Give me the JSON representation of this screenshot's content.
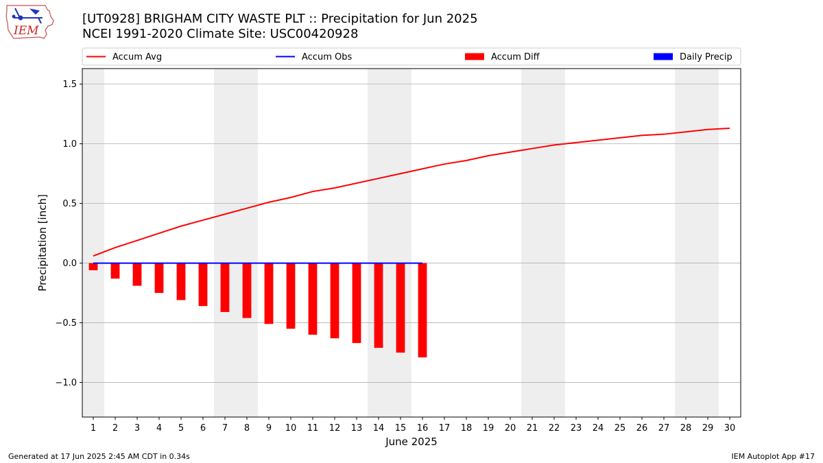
{
  "header": {
    "title_line1": "[UT0928] BRIGHAM CITY WASTE PLT :: Precipitation for Jun 2025",
    "title_line2": "NCEI 1991-2020 Climate Site: USC00420928"
  },
  "logo": {
    "text": "IEM",
    "icon": "iowa-state-map-logo-icon"
  },
  "footer": {
    "left": "Generated at 17 Jun 2025 2:45 AM CDT in 0.34s",
    "right": "IEM Autoplot App #17"
  },
  "colors": {
    "accum_avg": "#ff0000",
    "accum_obs": "#0000ff",
    "accum_diff": "#ff0000",
    "daily_precip": "#0000ff",
    "weekend_band": "#eeeeee",
    "grid": "#b0b0b0"
  },
  "chart_data": {
    "type": "bar",
    "xlabel": "June 2025",
    "ylabel": "Precipitation [inch]",
    "xlim": [
      0.5,
      30.5
    ],
    "ylim": [
      -1.29,
      1.63
    ],
    "x_ticks": [
      1,
      2,
      3,
      4,
      5,
      6,
      7,
      8,
      9,
      10,
      11,
      12,
      13,
      14,
      15,
      16,
      17,
      18,
      19,
      20,
      21,
      22,
      23,
      24,
      25,
      26,
      27,
      28,
      29,
      30
    ],
    "y_ticks": [
      -1.0,
      -0.5,
      0.0,
      0.5,
      1.0,
      1.5
    ],
    "y_tick_labels": [
      "−1.0",
      "−0.5",
      "0.0",
      "0.5",
      "1.0",
      "1.5"
    ],
    "grid": "horizontal",
    "legend_position": "top",
    "weekend_bands": [
      [
        0.5,
        1.5
      ],
      [
        6.5,
        8.5
      ],
      [
        13.5,
        15.5
      ],
      [
        20.5,
        22.5
      ],
      [
        27.5,
        29.5
      ]
    ],
    "series": [
      {
        "name": "Accum Avg",
        "kind": "line",
        "x": [
          1,
          2,
          3,
          4,
          5,
          6,
          7,
          8,
          9,
          10,
          11,
          12,
          13,
          14,
          15,
          16,
          17,
          18,
          19,
          20,
          21,
          22,
          23,
          24,
          25,
          26,
          27,
          28,
          29,
          30
        ],
        "values": [
          0.06,
          0.13,
          0.19,
          0.25,
          0.31,
          0.36,
          0.41,
          0.46,
          0.51,
          0.55,
          0.6,
          0.63,
          0.67,
          0.71,
          0.75,
          0.79,
          0.83,
          0.86,
          0.9,
          0.93,
          0.96,
          0.99,
          1.01,
          1.03,
          1.05,
          1.07,
          1.08,
          1.1,
          1.12,
          1.13
        ]
      },
      {
        "name": "Accum Obs",
        "kind": "line",
        "x": [
          1,
          2,
          3,
          4,
          5,
          6,
          7,
          8,
          9,
          10,
          11,
          12,
          13,
          14,
          15,
          16
        ],
        "values": [
          0,
          0,
          0,
          0,
          0,
          0,
          0,
          0,
          0,
          0,
          0,
          0,
          0,
          0,
          0,
          0
        ]
      },
      {
        "name": "Accum Diff",
        "kind": "bar",
        "x": [
          1,
          2,
          3,
          4,
          5,
          6,
          7,
          8,
          9,
          10,
          11,
          12,
          13,
          14,
          15,
          16
        ],
        "values": [
          -0.06,
          -0.13,
          -0.19,
          -0.25,
          -0.31,
          -0.36,
          -0.41,
          -0.46,
          -0.51,
          -0.55,
          -0.6,
          -0.63,
          -0.67,
          -0.71,
          -0.75,
          -0.79
        ]
      },
      {
        "name": "Daily Precip",
        "kind": "bar",
        "x": [
          1,
          2,
          3,
          4,
          5,
          6,
          7,
          8,
          9,
          10,
          11,
          12,
          13,
          14,
          15,
          16
        ],
        "values": [
          0,
          0,
          0,
          0,
          0,
          0,
          0,
          0,
          0,
          0,
          0,
          0,
          0,
          0,
          0,
          0
        ]
      }
    ]
  }
}
